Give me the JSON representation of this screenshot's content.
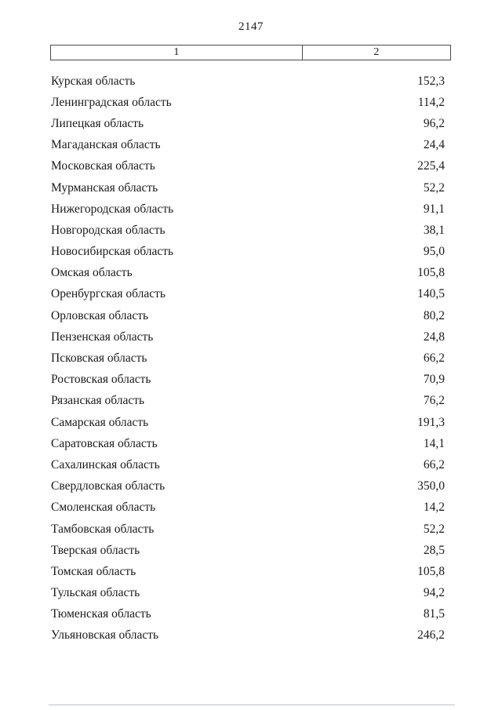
{
  "page": {
    "number": "2147"
  },
  "table": {
    "headers": [
      "1",
      "2"
    ],
    "rows": [
      {
        "name": "Курская область",
        "value": "152,3"
      },
      {
        "name": "Ленинградская область",
        "value": "114,2"
      },
      {
        "name": "Липецкая область",
        "value": "96,2"
      },
      {
        "name": "Магаданская область",
        "value": "24,4"
      },
      {
        "name": "Московская область",
        "value": "225,4"
      },
      {
        "name": "Мурманская область",
        "value": "52,2"
      },
      {
        "name": "Нижегородская область",
        "value": "91,1"
      },
      {
        "name": "Новгородская область",
        "value": "38,1"
      },
      {
        "name": "Новосибирская область",
        "value": "95,0"
      },
      {
        "name": "Омская область",
        "value": "105,8"
      },
      {
        "name": "Оренбургская область",
        "value": "140,5"
      },
      {
        "name": "Орловская область",
        "value": "80,2"
      },
      {
        "name": "Пензенская область",
        "value": "24,8"
      },
      {
        "name": "Псковская область",
        "value": "66,2"
      },
      {
        "name": "Ростовская область",
        "value": "70,9"
      },
      {
        "name": "Рязанская область",
        "value": "76,2"
      },
      {
        "name": "Самарская область",
        "value": "191,3"
      },
      {
        "name": "Саратовская область",
        "value": "14,1"
      },
      {
        "name": "Сахалинская область",
        "value": "66,2"
      },
      {
        "name": "Свердловская область",
        "value": "350,0"
      },
      {
        "name": "Смоленская область",
        "value": "14,2"
      },
      {
        "name": "Тамбовская область",
        "value": "52,2"
      },
      {
        "name": "Тверская область",
        "value": "28,5"
      },
      {
        "name": "Томская область",
        "value": "105,8"
      },
      {
        "name": "Тульская область",
        "value": "94,2"
      },
      {
        "name": "Тюменская область",
        "value": "81,5"
      },
      {
        "name": "Ульяновская область",
        "value": "246,2"
      }
    ]
  }
}
